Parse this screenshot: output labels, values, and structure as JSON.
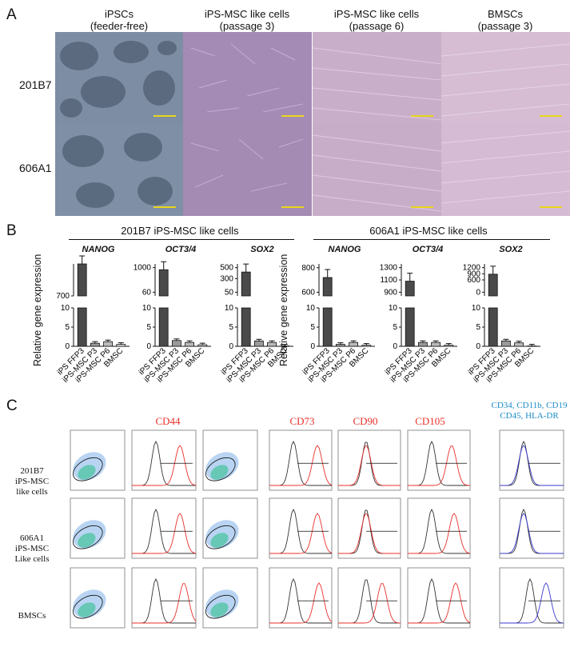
{
  "panels": {
    "a": "A",
    "b": "B",
    "c": "C"
  },
  "panelA": {
    "columns": [
      {
        "line1": "iPSCs",
        "line2": "(feeder-free)"
      },
      {
        "line1": "iPS-MSC like cells",
        "line2": "(passage 3)"
      },
      {
        "line1": "iPS-MSC like cells",
        "line2": "(passage 6)"
      },
      {
        "line1": "BMSCs",
        "line2": "(passage 3)"
      }
    ],
    "rows": [
      "201B7",
      "606A1"
    ],
    "colors": {
      "ips": "#6b7c93",
      "msc3": "#a58cb5",
      "msc6": "#c7a9c6",
      "bmsc": "#d4b8d2"
    }
  },
  "panelB": {
    "group_titles": [
      "201B7 iPS-MSC like cells",
      "606A1 iPS-MSC like cells"
    ],
    "ylabel": "Relative gene expression",
    "genes": [
      "NANOG",
      "OCT3/4",
      "SOX2",
      "NANOG",
      "OCT3/4",
      "SOX2"
    ],
    "x_labels": [
      "iPS FFP3",
      "iPS-MSC P3",
      "iPS-MSC P6",
      "BMSC"
    ]
  },
  "chart_data": [
    {
      "type": "bar",
      "title": "NANOG",
      "group": "201B7 iPS-MSC like cells",
      "categories": [
        "iPS FFP3",
        "iPS-MSC P3",
        "iPS-MSC P6",
        "BMSC"
      ],
      "values": [
        800,
        0.8,
        1.2,
        0.5
      ],
      "ylim_upper": [
        10,
        700
      ],
      "yticks_upper": [
        700
      ],
      "yticks_lower": [
        0,
        5,
        10
      ]
    },
    {
      "type": "bar",
      "title": "OCT3/4",
      "group": "201B7 iPS-MSC like cells",
      "categories": [
        "iPS FFP3",
        "iPS-MSC P3",
        "iPS-MSC P6",
        "BMSC"
      ],
      "values": [
        920,
        1.5,
        1.0,
        0.4
      ],
      "yticks_upper": [
        60,
        1000
      ],
      "yticks_lower": [
        0,
        5,
        10
      ]
    },
    {
      "type": "bar",
      "title": "SOX2",
      "group": "201B7 iPS-MSC like cells",
      "categories": [
        "iPS FFP3",
        "iPS-MSC P3",
        "iPS-MSC P6",
        "BMSC"
      ],
      "values": [
        420,
        1.4,
        1.0,
        0.1
      ],
      "yticks_upper": [
        50,
        300,
        500
      ],
      "yticks_lower": [
        0,
        5,
        10
      ]
    },
    {
      "type": "bar",
      "title": "NANOG",
      "group": "606A1 iPS-MSC like cells",
      "categories": [
        "iPS FFP3",
        "iPS-MSC P3",
        "iPS-MSC P6",
        "BMSC"
      ],
      "values": [
        720,
        0.5,
        1.0,
        0.3
      ],
      "yticks_upper": [
        600,
        800
      ],
      "yticks_lower": [
        0,
        5,
        10
      ]
    },
    {
      "type": "bar",
      "title": "OCT3/4",
      "group": "606A1 iPS-MSC like cells",
      "categories": [
        "iPS FFP3",
        "iPS-MSC P3",
        "iPS-MSC P6",
        "BMSC"
      ],
      "values": [
        1080,
        1.0,
        1.0,
        0.3
      ],
      "yticks_upper": [
        900,
        1100,
        1300
      ],
      "yticks_lower": [
        0,
        5,
        10
      ]
    },
    {
      "type": "bar",
      "title": "SOX2",
      "group": "606A1 iPS-MSC like cells",
      "categories": [
        "iPS FFP3",
        "iPS-MSC P3",
        "iPS-MSC P6",
        "BMSC"
      ],
      "values": [
        880,
        1.4,
        0.9,
        0.1
      ],
      "yticks_upper": [
        0,
        600,
        900,
        1200
      ],
      "yticks_lower": [
        0,
        5,
        10
      ]
    }
  ],
  "panelC": {
    "markers": [
      "CD44",
      "CD73",
      "CD90",
      "CD105"
    ],
    "negative_marker_line1": "CD34, CD11b, CD19",
    "negative_marker_line2": "CD45, HLA-DR",
    "rows": [
      {
        "l1": "201B7",
        "l2": "iPS-MSC",
        "l3": "like cells"
      },
      {
        "l1": "606A1",
        "l2": "iPS-MSC",
        "l3": "Like cells"
      },
      {
        "l1": "BMSCs",
        "l2": "",
        "l3": ""
      }
    ],
    "colors": {
      "marker": "#e8302a",
      "negative": "#1a8cc8",
      "control": "#333333",
      "hist": "#e8302a",
      "iso": "#3a3ad0"
    }
  }
}
